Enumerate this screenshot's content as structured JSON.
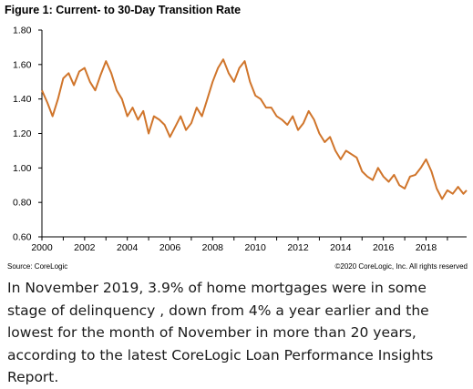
{
  "chart_data": {
    "type": "line",
    "title": "Figure 1: Current- to 30-Day Transition Rate",
    "xlabel": "",
    "ylabel": "",
    "xlim": [
      2000,
      2019.9
    ],
    "ylim": [
      0.6,
      1.8
    ],
    "yticks": [
      "0.60",
      "0.80",
      "1.00",
      "1.20",
      "1.40",
      "1.60",
      "1.80"
    ],
    "xticks": [
      "2000",
      "2002",
      "2004",
      "2006",
      "2008",
      "2010",
      "2012",
      "2014",
      "2016",
      "2018"
    ],
    "grid": false,
    "legend": "none",
    "line_color": "#d0752b",
    "series": [
      {
        "x": [
          2000.0,
          2000.25,
          2000.5,
          2000.75,
          2001.0,
          2001.25,
          2001.5,
          2001.75,
          2002.0,
          2002.25,
          2002.5,
          2002.75,
          2003.0,
          2003.25,
          2003.5,
          2003.75,
          2004.0,
          2004.25,
          2004.5,
          2004.75,
          2005.0,
          2005.25,
          2005.5,
          2005.75,
          2006.0,
          2006.25,
          2006.5,
          2006.75,
          2007.0,
          2007.25,
          2007.5,
          2007.75,
          2008.0,
          2008.25,
          2008.5,
          2008.75,
          2009.0,
          2009.25,
          2009.5,
          2009.75,
          2010.0,
          2010.25,
          2010.5,
          2010.75,
          2011.0,
          2011.25,
          2011.5,
          2011.75,
          2012.0,
          2012.25,
          2012.5,
          2012.75,
          2013.0,
          2013.25,
          2013.5,
          2013.75,
          2014.0,
          2014.25,
          2014.5,
          2014.75,
          2015.0,
          2015.25,
          2015.5,
          2015.75,
          2016.0,
          2016.25,
          2016.5,
          2016.75,
          2017.0,
          2017.25,
          2017.5,
          2017.75,
          2018.0,
          2018.25,
          2018.5,
          2018.75,
          2019.0,
          2019.25,
          2019.5,
          2019.75,
          2019.9
        ],
        "values": [
          1.45,
          1.38,
          1.3,
          1.4,
          1.52,
          1.55,
          1.48,
          1.56,
          1.58,
          1.5,
          1.45,
          1.54,
          1.62,
          1.55,
          1.45,
          1.4,
          1.3,
          1.35,
          1.28,
          1.33,
          1.2,
          1.3,
          1.28,
          1.25,
          1.18,
          1.24,
          1.3,
          1.22,
          1.26,
          1.35,
          1.3,
          1.4,
          1.5,
          1.58,
          1.63,
          1.55,
          1.5,
          1.58,
          1.62,
          1.5,
          1.42,
          1.4,
          1.35,
          1.35,
          1.3,
          1.28,
          1.25,
          1.3,
          1.22,
          1.26,
          1.33,
          1.28,
          1.2,
          1.15,
          1.18,
          1.1,
          1.05,
          1.1,
          1.08,
          1.06,
          0.98,
          0.95,
          0.93,
          1.0,
          0.95,
          0.92,
          0.96,
          0.9,
          0.88,
          0.95,
          0.96,
          1.0,
          1.05,
          0.98,
          0.88,
          0.82,
          0.87,
          0.85,
          0.89,
          0.85,
          0.87
        ]
      }
    ]
  },
  "footer": {
    "source": "Source: CoreLogic",
    "copyright": "©2020 CoreLogic, Inc. All rights reserved"
  },
  "caption": "In November 2019, 3.9% of home mortgages were in some stage of delinquency , down from 4% a year earlier and the lowest for the month of November in more than 20 years, according to the latest CoreLogic Loan Performance Insights Report."
}
